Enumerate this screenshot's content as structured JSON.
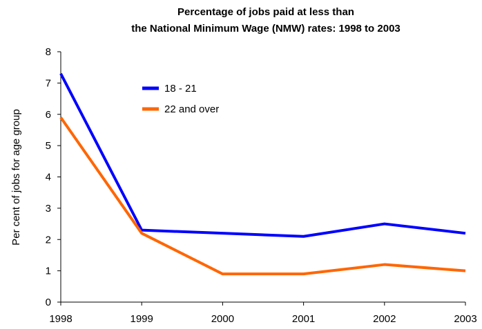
{
  "chart_data": {
    "type": "line",
    "title": [
      "Percentage of jobs paid at less than",
      "the National Minimum Wage (NMW) rates: 1998 to 2003"
    ],
    "ylabel": "Per cent of jobs for age group",
    "xlabel": "",
    "x": [
      "1998",
      "1999",
      "2000",
      "2001",
      "2002",
      "2003"
    ],
    "ylim": [
      0,
      8
    ],
    "yticks": [
      0,
      1,
      2,
      3,
      4,
      5,
      6,
      7,
      8
    ],
    "grid": false,
    "legend_position": "top-left inside plot",
    "series": [
      {
        "name": "18 - 21",
        "color": "#0000ff",
        "values": [
          7.3,
          2.3,
          2.2,
          2.1,
          2.5,
          2.2
        ]
      },
      {
        "name": "22 and over",
        "color": "#ff6600",
        "values": [
          5.9,
          2.2,
          0.9,
          0.9,
          1.2,
          1.0
        ]
      }
    ]
  }
}
